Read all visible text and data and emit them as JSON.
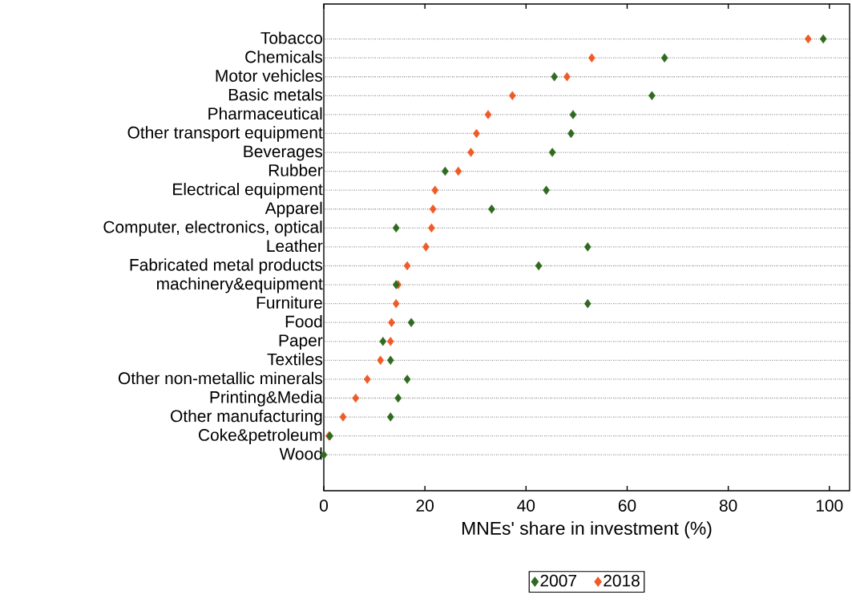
{
  "chart_data": {
    "type": "scatter",
    "orientation": "horizontal",
    "xlabel": "MNEs' share in investment (%)",
    "categories": [
      "Tobacco",
      "Chemicals",
      "Motor vehicles",
      "Basic metals",
      "Pharmaceutical",
      "Other transport equipment",
      "Beverages",
      "Rubber",
      "Electrical equipment",
      "Apparel",
      "Computer, electronics, optical",
      "Leather",
      "Fabricated metal products",
      "machinery&equipment",
      "Furniture",
      "Food",
      "Paper",
      "Textiles",
      "Other non-metallic minerals",
      "Printing&Media",
      "Other manufacturing",
      "Coke&petroleum",
      "Wood"
    ],
    "series": [
      {
        "name": "2007",
        "color": "#2e6b1f",
        "values": [
          98.8,
          67.4,
          45.6,
          64.9,
          49.3,
          48.9,
          45.2,
          24.0,
          44.0,
          33.2,
          14.3,
          52.2,
          42.5,
          14.3,
          52.2,
          17.3,
          11.7,
          13.2,
          16.5,
          14.7,
          13.2,
          1.2,
          0
        ]
      },
      {
        "name": "2018",
        "color": "#f05a28",
        "values": [
          95.8,
          53.0,
          48.1,
          37.3,
          32.5,
          30.2,
          29.1,
          26.6,
          22.0,
          21.6,
          21.3,
          20.2,
          16.5,
          14.7,
          14.3,
          13.4,
          13.2,
          11.2,
          8.6,
          6.3,
          3.8,
          1.0,
          null
        ]
      }
    ],
    "xlim": [
      0,
      104
    ],
    "xticks": [
      0,
      20,
      40,
      60,
      80,
      100
    ],
    "grid": "y",
    "legend": "bottom",
    "marker": "diamond"
  }
}
